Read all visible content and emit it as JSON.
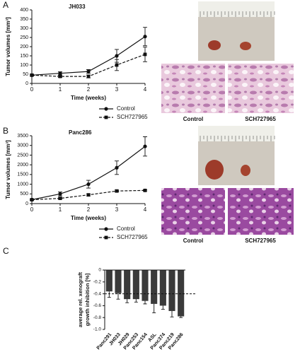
{
  "chart_data": [
    {
      "type": "line",
      "panel": "A",
      "title": "JH033",
      "ylabel": "Tumor volumes [mm³]",
      "xlabel": "Time (weeks)",
      "x": [
        0,
        1,
        2,
        3,
        4
      ],
      "xlim": [
        0,
        4
      ],
      "xticks": [
        0,
        1,
        2,
        3,
        4
      ],
      "ylim": [
        0,
        400
      ],
      "yticks": [
        0,
        50,
        100,
        150,
        200,
        250,
        300,
        350,
        400
      ],
      "legend": "bottom",
      "series": [
        {
          "name": "Control",
          "color": "#111111",
          "marker": "circle",
          "dash": false,
          "values": [
            45,
            55,
            65,
            150,
            255
          ],
          "errors": [
            5,
            8,
            10,
            35,
            50
          ]
        },
        {
          "name": "SCH727965",
          "color": "#111111",
          "marker": "square",
          "dash": true,
          "values": [
            45,
            38,
            38,
            100,
            158
          ],
          "errors": [
            5,
            5,
            8,
            30,
            40
          ]
        }
      ],
      "image_labels": [
        "Control",
        "SCH727965"
      ]
    },
    {
      "type": "line",
      "panel": "B",
      "title": "Panc286",
      "ylabel": "Tumor volumes [mm³]",
      "xlabel": "Time (weeks)",
      "x": [
        0,
        1,
        2,
        3,
        4
      ],
      "xlim": [
        0,
        4
      ],
      "xticks": [
        0,
        1,
        2,
        3,
        4
      ],
      "ylim": [
        0,
        3500
      ],
      "yticks": [
        0,
        500,
        1000,
        1500,
        2000,
        2500,
        3000,
        3500
      ],
      "legend": "bottom",
      "series": [
        {
          "name": "Control",
          "color": "#111111",
          "marker": "circle",
          "dash": false,
          "values": [
            200,
            500,
            1000,
            1850,
            2950
          ],
          "errors": [
            30,
            100,
            200,
            350,
            500
          ]
        },
        {
          "name": "SCH727965",
          "color": "#111111",
          "marker": "square",
          "dash": true,
          "values": [
            200,
            270,
            450,
            650,
            680
          ],
          "errors": [
            30,
            50,
            50,
            50,
            30
          ]
        }
      ],
      "image_labels": [
        "Control",
        "SCH727965"
      ]
    },
    {
      "type": "bar",
      "panel": "C",
      "ylabel": [
        "average rel. xenograft",
        "growth inhibition [%]"
      ],
      "categories": [
        "Panc291",
        "JH033",
        "JH029",
        "Panc253",
        "Panc154",
        "ASL",
        "Panc374",
        "Panc219",
        "Panc286"
      ],
      "values": [
        -0.36,
        -0.39,
        -0.49,
        -0.49,
        -0.52,
        -0.57,
        -0.6,
        -0.69,
        -0.78
      ],
      "errors": [
        0.1,
        0.1,
        0.06,
        0.05,
        0.05,
        0.15,
        0.06,
        0.1,
        0.02
      ],
      "color": "#3a3a3a",
      "ylim": [
        -1,
        0
      ],
      "yticks": [
        0,
        -0.2,
        -0.4,
        -0.6,
        -0.8,
        {
          "value": -1,
          "label": "-1.0"
        }
      ],
      "reference_line": -0.4
    }
  ]
}
